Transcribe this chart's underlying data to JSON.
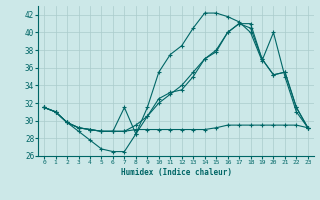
{
  "xlabel": "Humidex (Indice chaleur)",
  "xlim": [
    -0.5,
    23.5
  ],
  "ylim": [
    26,
    43
  ],
  "yticks": [
    26,
    28,
    30,
    32,
    34,
    36,
    38,
    40,
    42
  ],
  "xticks": [
    0,
    1,
    2,
    3,
    4,
    5,
    6,
    7,
    8,
    9,
    10,
    11,
    12,
    13,
    14,
    15,
    16,
    17,
    18,
    19,
    20,
    21,
    22,
    23
  ],
  "bg_color": "#cce8e8",
  "line_color": "#006666",
  "grid_color": "#aacccc",
  "lines": [
    [
      31.5,
      31.0,
      29.8,
      28.8,
      27.8,
      26.8,
      26.5,
      26.5,
      28.5,
      31.5,
      35.5,
      37.5,
      38.5,
      40.5,
      42.2,
      42.2,
      41.8,
      41.2,
      40.0,
      36.8,
      40.0,
      35.0,
      31.0,
      29.2
    ],
    [
      31.5,
      31.0,
      29.8,
      29.2,
      29.0,
      28.8,
      28.8,
      28.8,
      29.0,
      29.0,
      29.0,
      29.0,
      29.0,
      29.0,
      29.0,
      29.2,
      29.5,
      29.5,
      29.5,
      29.5,
      29.5,
      29.5,
      29.5,
      29.2
    ],
    [
      31.5,
      31.0,
      29.8,
      29.2,
      29.0,
      28.8,
      28.8,
      28.8,
      29.5,
      30.5,
      32.0,
      33.0,
      34.0,
      35.5,
      37.0,
      38.0,
      40.0,
      41.0,
      40.5,
      37.0,
      35.2,
      35.5,
      31.5,
      29.2
    ],
    [
      31.5,
      31.0,
      29.8,
      29.2,
      29.0,
      28.8,
      28.8,
      31.5,
      28.5,
      30.5,
      32.5,
      33.2,
      33.5,
      35.0,
      37.0,
      37.8,
      40.0,
      41.0,
      41.0,
      37.0,
      35.2,
      35.5,
      31.5,
      29.2
    ]
  ]
}
